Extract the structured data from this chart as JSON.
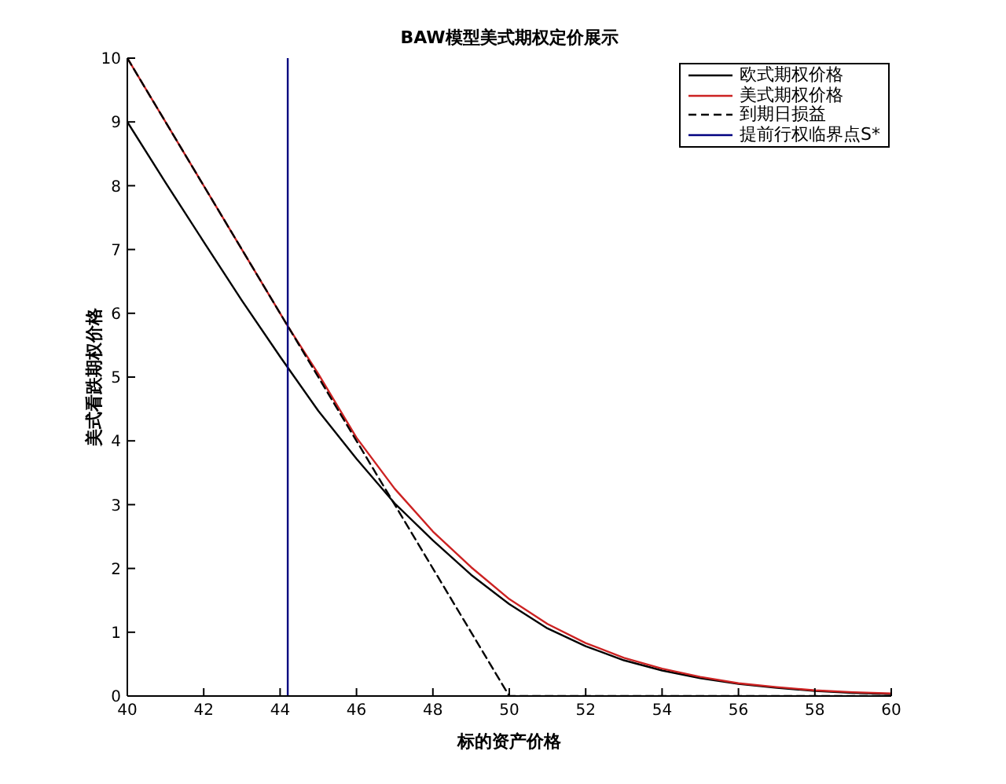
{
  "chart_data": {
    "type": "line",
    "title": "BAW模型美式期权定价展示",
    "xlabel": "标的资产价格",
    "ylabel": "美式看跌期权价格",
    "xlim": [
      40,
      60
    ],
    "xticks": [
      40,
      42,
      44,
      46,
      48,
      50,
      52,
      54,
      56,
      58,
      60
    ],
    "ylim": [
      0,
      10
    ],
    "yticks": [
      0,
      1,
      2,
      3,
      4,
      5,
      6,
      7,
      8,
      9,
      10
    ],
    "grid": false,
    "legend": "top right",
    "marker": "none",
    "line_style": "solid",
    "series": [
      {
        "name": "欧式期权价格",
        "color": "#000000",
        "x": [
          40,
          41,
          42,
          43,
          44,
          45,
          46,
          47,
          48,
          49,
          50,
          51,
          52,
          53,
          54,
          55,
          56,
          57,
          58,
          59,
          60
        ],
        "values": [
          9.0,
          8.05,
          7.12,
          6.2,
          5.32,
          4.47,
          3.72,
          3.02,
          2.44,
          1.9,
          1.44,
          1.06,
          0.78,
          0.56,
          0.4,
          0.28,
          0.19,
          0.13,
          0.08,
          0.05,
          0.03
        ]
      },
      {
        "name": "美式期权价格",
        "color": "#cc2222",
        "x": [
          40,
          44.2,
          45,
          46,
          47,
          48,
          49,
          50,
          51,
          52,
          53,
          54,
          55,
          56,
          57,
          58,
          59,
          60
        ],
        "values": [
          10,
          5.8,
          5.05,
          4.05,
          3.25,
          2.58,
          2.02,
          1.52,
          1.13,
          0.83,
          0.6,
          0.43,
          0.3,
          0.2,
          0.14,
          0.09,
          0.06,
          0.04
        ]
      },
      {
        "name": "到期日损益",
        "color": "#000000",
        "line_style": "dashed",
        "x": [
          40,
          50,
          60
        ],
        "values": [
          10,
          0,
          0
        ]
      },
      {
        "name": "提前行权临界点S*",
        "color": "#000080",
        "x": [
          44.2,
          44.2
        ],
        "values": [
          0,
          10
        ]
      }
    ]
  }
}
